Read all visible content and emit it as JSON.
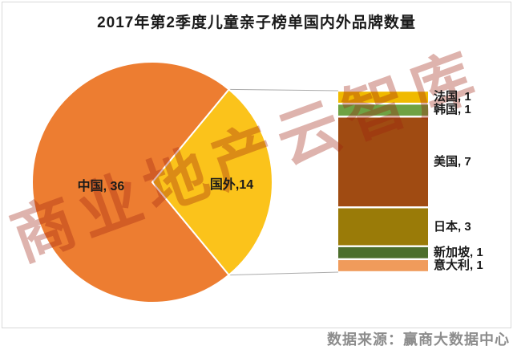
{
  "chart_data": {
    "type": "pie",
    "variant": "bar-of-pie",
    "title": "2017年第2季度儿童亲子榜单国内外品牌数量",
    "pie": {
      "categories": [
        "中国",
        "国外"
      ],
      "values": [
        36,
        14
      ],
      "labels": [
        "中国, 36",
        "国外,14"
      ],
      "colors": [
        "#ED7D31",
        "#FBC31B"
      ]
    },
    "breakdown": {
      "categories": [
        "法国",
        "韩国",
        "美国",
        "日本",
        "新加坡",
        "意大利"
      ],
      "values": [
        1,
        1,
        7,
        3,
        1,
        1
      ],
      "labels": [
        "法国, 1",
        "韩国, 1",
        "美国, 7",
        "日本, 3",
        "新加坡, 1",
        "意大利, 1"
      ],
      "colors": [
        "#F0BA00",
        "#6FA243",
        "#A04B12",
        "#9A7B08",
        "#4C6E2C",
        "#F09B5B"
      ]
    },
    "legend_position": "none",
    "grid": false,
    "connector_color": "#ababab",
    "source": "数据来源：赢商大数据中心",
    "watermark": "商业地产云智库"
  }
}
